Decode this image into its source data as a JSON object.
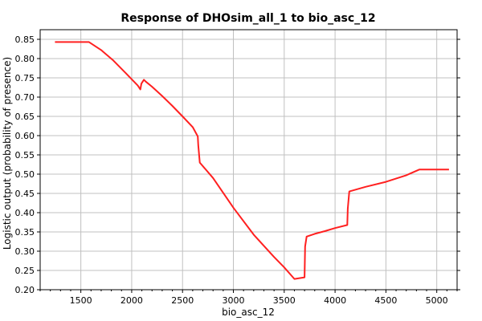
{
  "chart_data": {
    "type": "line",
    "title": "Response of DHOsim_all_1 to bio_asc_12",
    "xlabel": "bio_asc_12",
    "ylabel": "Logistic output (probability of presence)",
    "xlim": [
      1100,
      5200
    ],
    "ylim": [
      0.2,
      0.875
    ],
    "xticks": [
      "1500",
      "2000",
      "2500",
      "3000",
      "3500",
      "4000",
      "4500",
      "5000"
    ],
    "yticks": [
      "0.20",
      "0.25",
      "0.30",
      "0.35",
      "0.40",
      "0.45",
      "0.50",
      "0.55",
      "0.60",
      "0.65",
      "0.70",
      "0.75",
      "0.80",
      "0.85"
    ],
    "grid": true,
    "series": [
      {
        "color": "#ff2020",
        "x": [
          1245,
          1580,
          1700,
          1820,
          1950,
          2060,
          2085,
          2095,
          2120,
          2140,
          2200,
          2300,
          2400,
          2500,
          2600,
          2650,
          2655,
          2670,
          2800,
          3000,
          3200,
          3400,
          3500,
          3600,
          3700,
          3705,
          3720,
          3800,
          3900,
          4000,
          4120,
          4125,
          4140,
          4300,
          4500,
          4700,
          4830,
          5000,
          5120
        ],
        "y": [
          0.843,
          0.843,
          0.822,
          0.795,
          0.76,
          0.73,
          0.72,
          0.735,
          0.745,
          0.74,
          0.727,
          0.703,
          0.677,
          0.65,
          0.622,
          0.598,
          0.575,
          0.53,
          0.49,
          0.413,
          0.343,
          0.285,
          0.258,
          0.228,
          0.232,
          0.312,
          0.338,
          0.345,
          0.352,
          0.36,
          0.368,
          0.41,
          0.455,
          0.467,
          0.48,
          0.497,
          0.512,
          0.512,
          0.512
        ]
      }
    ]
  }
}
